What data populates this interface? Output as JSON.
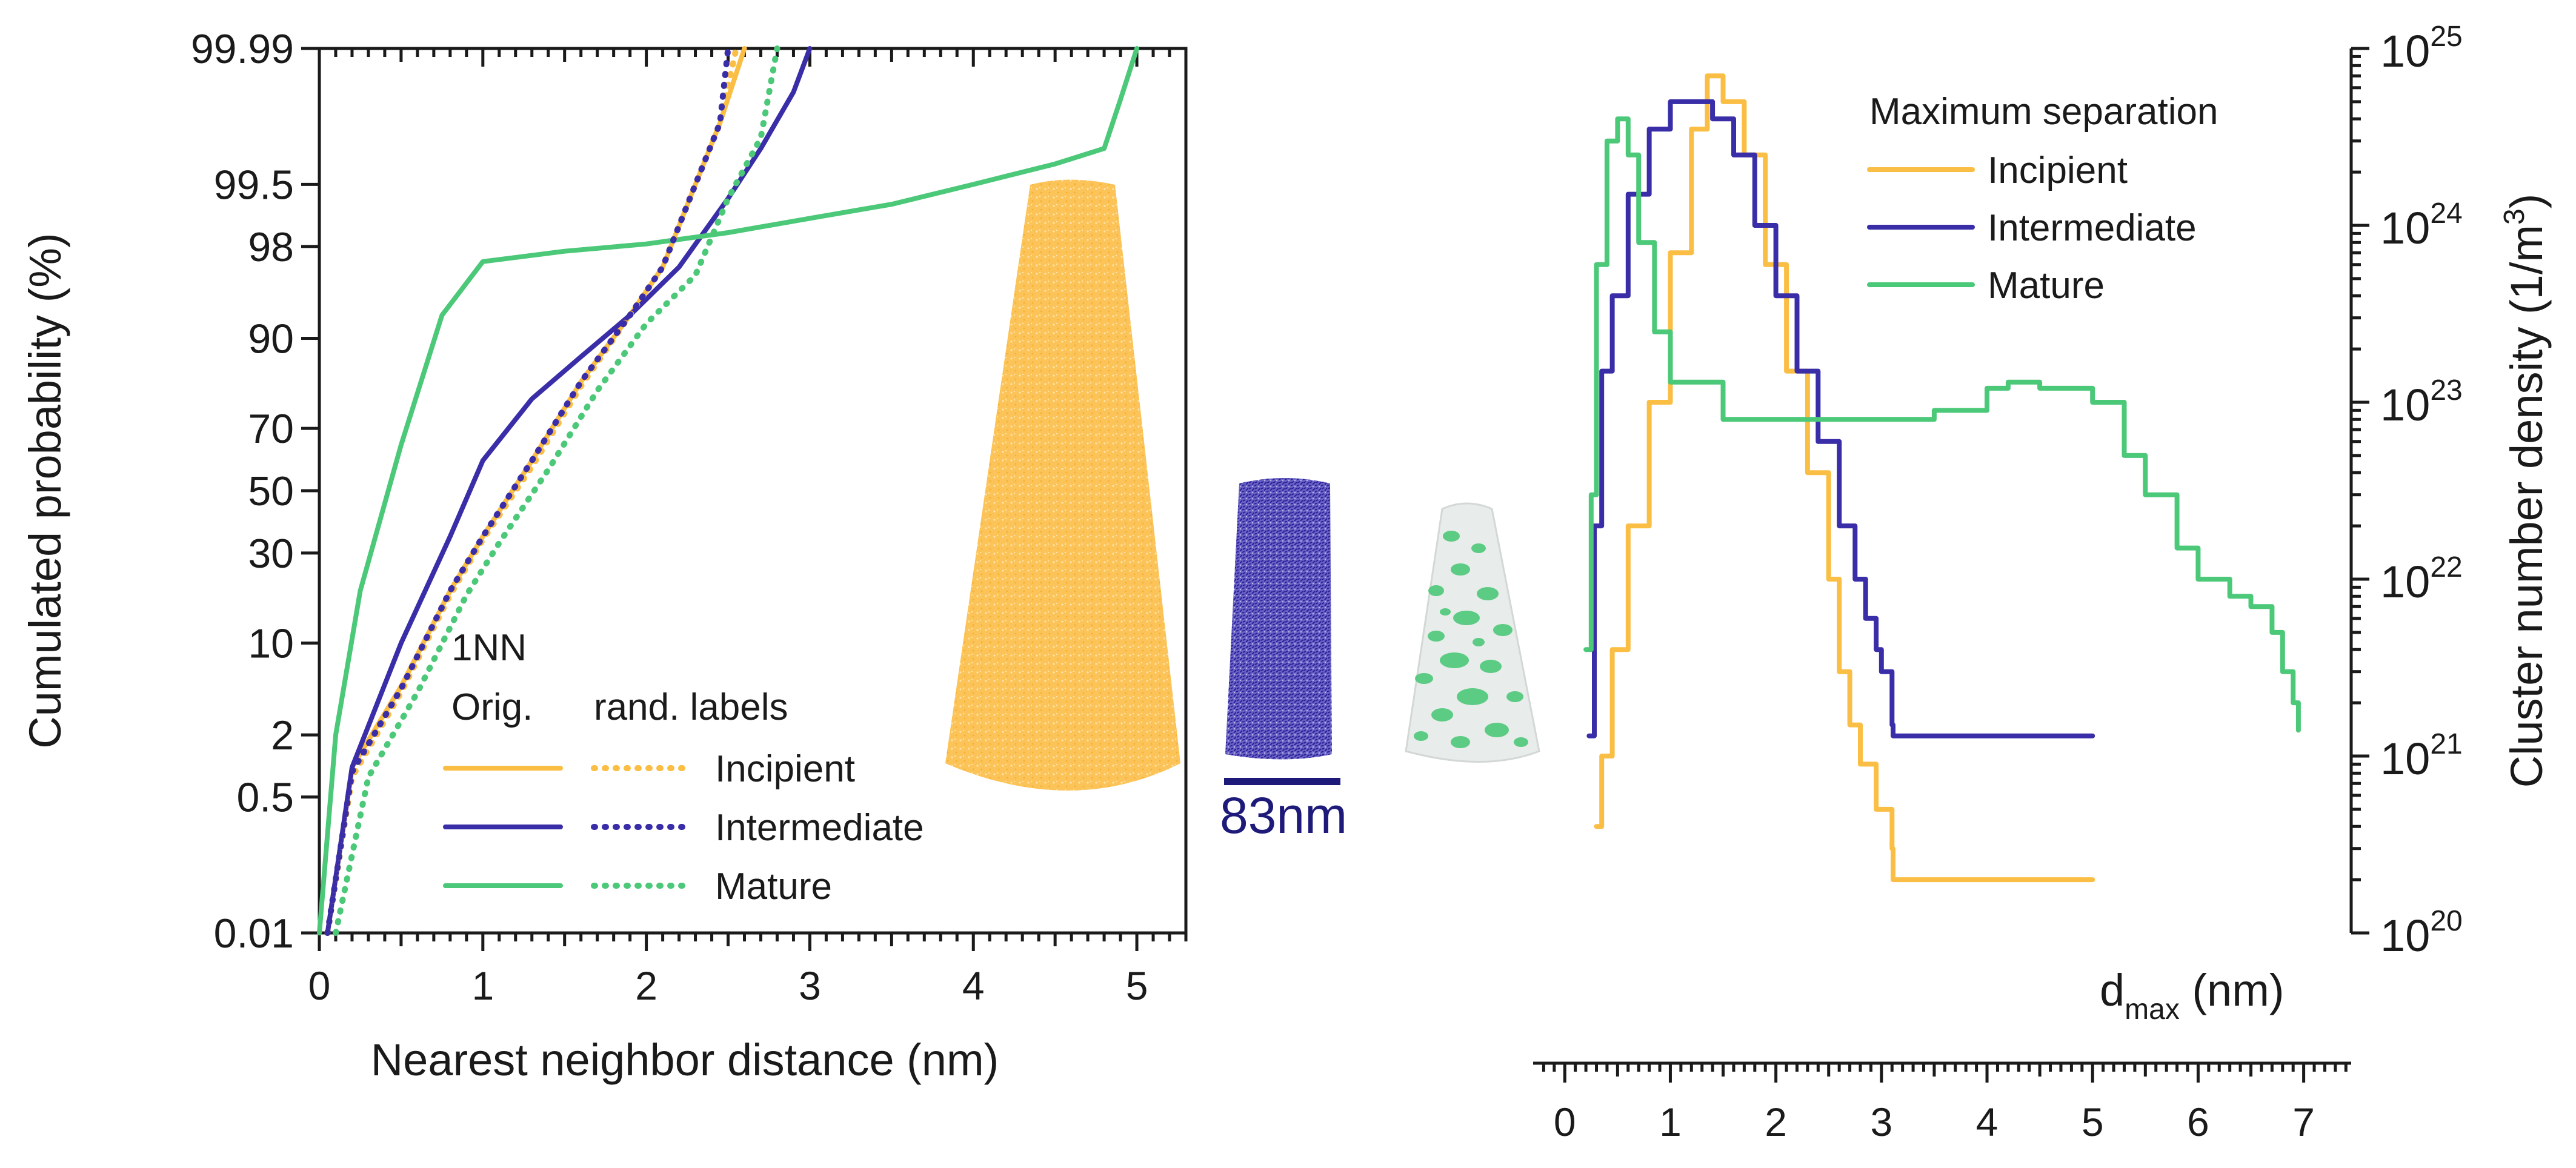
{
  "chart_data": [
    {
      "type": "line",
      "panel": "left",
      "ylabel": "Cumulated probability (%)",
      "xlabel": "Nearest neighbor distance (nm)",
      "xlim": [
        0,
        5.3
      ],
      "x_ticks": [
        "0",
        "1",
        "2",
        "3",
        "4",
        "5"
      ],
      "y_scale": "probability",
      "y_ticks": [
        "0.01",
        "0.5",
        "2",
        "10",
        "30",
        "50",
        "70",
        "90",
        "98",
        "99.5",
        "99.99"
      ],
      "legend_title": "1NN",
      "legend_col1": "Orig.",
      "legend_col2": "rand. labels",
      "colors": {
        "incipient": "#FBBE45",
        "intermediate": "#3A2DA8",
        "mature": "#4CC879"
      },
      "series": [
        {
          "name": "Incipient",
          "style": "solid",
          "x": [
            0.05,
            0.2,
            0.5,
            0.8,
            1.0,
            1.3,
            1.6,
            1.9,
            2.1,
            2.3,
            2.45,
            2.6
          ],
          "y": [
            0.01,
            1,
            5,
            20,
            35,
            60,
            82,
            93,
            97,
            99.5,
            99.9,
            99.99
          ]
        },
        {
          "name": "Intermediate",
          "style": "solid",
          "x": [
            0.05,
            0.2,
            0.5,
            0.8,
            1.0,
            1.3,
            1.6,
            1.9,
            2.2,
            2.5,
            2.7,
            2.9,
            3.0
          ],
          "y": [
            0.01,
            1,
            10,
            35,
            60,
            78,
            87,
            93,
            97,
            99.3,
            99.8,
            99.96,
            99.99
          ]
        },
        {
          "name": "Mature",
          "style": "solid",
          "x": [
            0.0,
            0.1,
            0.25,
            0.5,
            0.75,
            1.0,
            1.5,
            2.0,
            2.5,
            3.0,
            3.5,
            4.0,
            4.5,
            4.8,
            4.9,
            5.0
          ],
          "y": [
            0.01,
            2,
            20,
            65,
            93,
            97.3,
            97.8,
            98.1,
            98.5,
            98.9,
            99.2,
            99.5,
            99.7,
            99.8,
            99.95,
            99.99
          ]
        },
        {
          "name": "Incipient",
          "style": "dotted",
          "x": [
            0.05,
            0.2,
            0.5,
            0.8,
            1.0,
            1.3,
            1.6,
            1.9,
            2.1,
            2.3,
            2.45,
            2.55
          ],
          "y": [
            0.01,
            0.8,
            4.5,
            19,
            34,
            58,
            81,
            93,
            97,
            99.5,
            99.9,
            99.99
          ]
        },
        {
          "name": "Intermediate",
          "style": "dotted",
          "x": [
            0.05,
            0.2,
            0.5,
            0.8,
            1.0,
            1.3,
            1.6,
            1.9,
            2.1,
            2.3,
            2.45,
            2.5
          ],
          "y": [
            0.01,
            0.9,
            4.8,
            20,
            35,
            60,
            82,
            93,
            97,
            99.5,
            99.9,
            99.99
          ]
        },
        {
          "name": "Mature",
          "style": "dotted",
          "x": [
            0.1,
            0.3,
            0.6,
            0.9,
            1.1,
            1.4,
            1.7,
            2.0,
            2.3,
            2.5,
            2.7,
            2.8
          ],
          "y": [
            0.01,
            0.8,
            4.5,
            19,
            33,
            57,
            80,
            92,
            96.5,
            99.3,
            99.85,
            99.99
          ]
        }
      ]
    },
    {
      "type": "line",
      "panel": "right",
      "step": true,
      "xlabel_main": "d",
      "xlabel_sub": "max",
      "xlabel_unit": " (nm)",
      "ylabel": "Cluster number density (1/m",
      "ylabel_sup": "3",
      "ylabel_close": ")",
      "xlim": [
        -0.3,
        7.45
      ],
      "x_ticks": [
        "0",
        "1",
        "2",
        "3",
        "4",
        "5",
        "6",
        "7"
      ],
      "y_scale": "log",
      "ylim": [
        1e+20,
        1e+25
      ],
      "y_ticks": [
        {
          "base": "10",
          "exp": "20"
        },
        {
          "base": "10",
          "exp": "21"
        },
        {
          "base": "10",
          "exp": "22"
        },
        {
          "base": "10",
          "exp": "23"
        },
        {
          "base": "10",
          "exp": "24"
        },
        {
          "base": "10",
          "exp": "25"
        }
      ],
      "legend_title": "Maximum separation",
      "series": [
        {
          "name": "Incipient",
          "x": [
            0.3,
            0.35,
            0.45,
            0.6,
            0.8,
            1.0,
            1.2,
            1.35,
            1.5,
            1.7,
            1.9,
            2.1,
            2.3,
            2.5,
            2.6,
            2.7,
            2.8,
            2.95,
            3.1,
            3.11,
            5.0
          ],
          "y": [
            4e+20,
            1e+21,
            4e+21,
            2e+22,
            1e+23,
            7e+23,
            3.5e+24,
            7e+24,
            5e+24,
            2.5e+24,
            6e+23,
            1.5e+23,
            4e+22,
            1e+22,
            3e+21,
            1.5e+21,
            9e+20,
            5e+20,
            3e+20,
            2e+20,
            2e+20
          ]
        },
        {
          "name": "Intermediate",
          "x": [
            0.23,
            0.28,
            0.35,
            0.45,
            0.6,
            0.8,
            1.0,
            1.2,
            1.4,
            1.6,
            1.8,
            2.0,
            2.2,
            2.4,
            2.6,
            2.75,
            2.85,
            2.95,
            3.0,
            3.1,
            3.11,
            5.0
          ],
          "y": [
            1.3e+21,
            2e+22,
            1.5e+23,
            4e+23,
            1.5e+24,
            3.5e+24,
            5e+24,
            5e+24,
            4e+24,
            2.5e+24,
            1e+24,
            4e+23,
            1.5e+23,
            6e+22,
            2e+22,
            1e+22,
            6e+21,
            4e+21,
            3e+21,
            1.5e+21,
            1.3e+21,
            1.3e+21
          ]
        },
        {
          "name": "Mature",
          "x": [
            0.2,
            0.25,
            0.3,
            0.4,
            0.5,
            0.6,
            0.7,
            0.85,
            1.0,
            1.5,
            2.0,
            2.5,
            3.0,
            3.5,
            4.0,
            4.2,
            4.5,
            5.0,
            5.3,
            5.5,
            5.8,
            6.0,
            6.3,
            6.5,
            6.7,
            6.8,
            6.9,
            6.95
          ],
          "y": [
            4e+21,
            3e+22,
            6e+23,
            3e+24,
            4e+24,
            2.5e+24,
            8e+23,
            2.5e+23,
            1.3e+23,
            8e+22,
            8e+22,
            8e+22,
            8e+22,
            9e+22,
            1.2e+23,
            1.3e+23,
            1.2e+23,
            1e+23,
            5e+22,
            3e+22,
            1.5e+22,
            1e+22,
            8e+21,
            7e+21,
            5e+21,
            3e+21,
            2e+21,
            1.4e+21
          ]
        }
      ]
    }
  ],
  "inset": {
    "scale_bar_label": "83nm",
    "scale_bar_color": "#1E1A7A",
    "colors": {
      "incipient": "#FBBE45",
      "intermediate": "#3A2DA8",
      "mature": "#4CC879",
      "shell": "#E8ECEA"
    }
  }
}
